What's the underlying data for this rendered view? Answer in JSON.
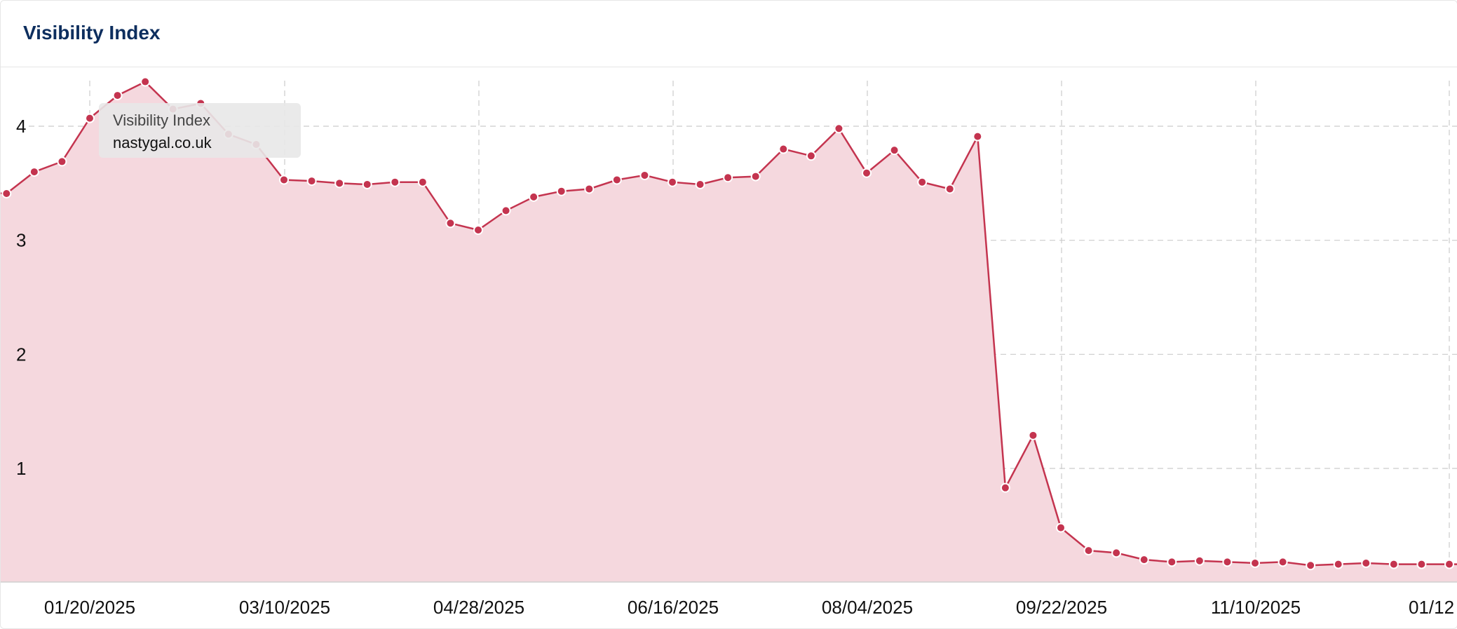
{
  "card": {
    "title": "Visibility Index"
  },
  "tooltip": {
    "series": "Visibility Index",
    "domain": "nastygal.co.uk"
  },
  "colors": {
    "line": "#c4344f",
    "fill": "#f5d8de",
    "grid": "#cccccc",
    "title": "#0d2e5e"
  },
  "chart_data": {
    "type": "area",
    "title": "Visibility Index",
    "xlabel": "",
    "ylabel": "",
    "ylim": [
      0,
      4.4
    ],
    "yticks": [
      1,
      2,
      3,
      4
    ],
    "grid": true,
    "xticks": [
      "01/20/2025",
      "03/10/2025",
      "04/28/2025",
      "06/16/2025",
      "08/04/2025",
      "09/22/2025",
      "11/10/2025",
      "01/12"
    ],
    "series": [
      {
        "x": [
          "12/23/2024",
          "12/30/2024",
          "01/06/2025",
          "01/13/2025",
          "01/20/2025",
          "01/27/2025",
          "02/03/2025",
          "02/10/2025",
          "02/17/2025",
          "02/24/2025",
          "03/03/2025",
          "03/10/2025",
          "03/17/2025",
          "03/24/2025",
          "03/31/2025",
          "04/07/2025",
          "04/14/2025",
          "04/21/2025",
          "04/28/2025",
          "05/05/2025",
          "05/12/2025",
          "05/19/2025",
          "05/26/2025",
          "06/02/2025",
          "06/09/2025",
          "06/16/2025",
          "06/23/2025",
          "06/30/2025",
          "07/07/2025",
          "07/14/2025",
          "07/21/2025",
          "07/28/2025",
          "08/04/2025",
          "08/11/2025",
          "08/18/2025",
          "08/25/2025",
          "09/01/2025",
          "09/08/2025",
          "09/15/2025",
          "09/22/2025",
          "09/29/2025",
          "10/06/2025",
          "10/13/2025",
          "10/20/2025",
          "10/27/2025",
          "11/03/2025",
          "11/10/2025",
          "11/17/2025",
          "11/24/2025",
          "12/01/2025",
          "12/08/2025",
          "12/15/2025",
          "12/22/2025",
          "12/29/2025",
          "01/05/2026"
        ],
        "values": [
          3.42,
          3.41,
          3.6,
          3.69,
          4.07,
          4.27,
          4.39,
          4.15,
          4.2,
          3.93,
          3.84,
          3.53,
          3.52,
          3.5,
          3.49,
          3.51,
          3.51,
          3.15,
          3.09,
          3.26,
          3.38,
          3.43,
          3.45,
          3.53,
          3.57,
          3.51,
          3.49,
          3.55,
          3.56,
          3.8,
          3.74,
          3.98,
          3.59,
          3.79,
          3.51,
          3.45,
          3.91,
          0.83,
          1.29,
          0.48,
          0.28,
          0.26,
          0.2,
          0.18,
          0.19,
          0.18,
          0.17,
          0.18,
          0.15,
          0.16,
          0.17,
          0.16,
          0.16,
          0.16,
          0.16
        ]
      }
    ]
  }
}
